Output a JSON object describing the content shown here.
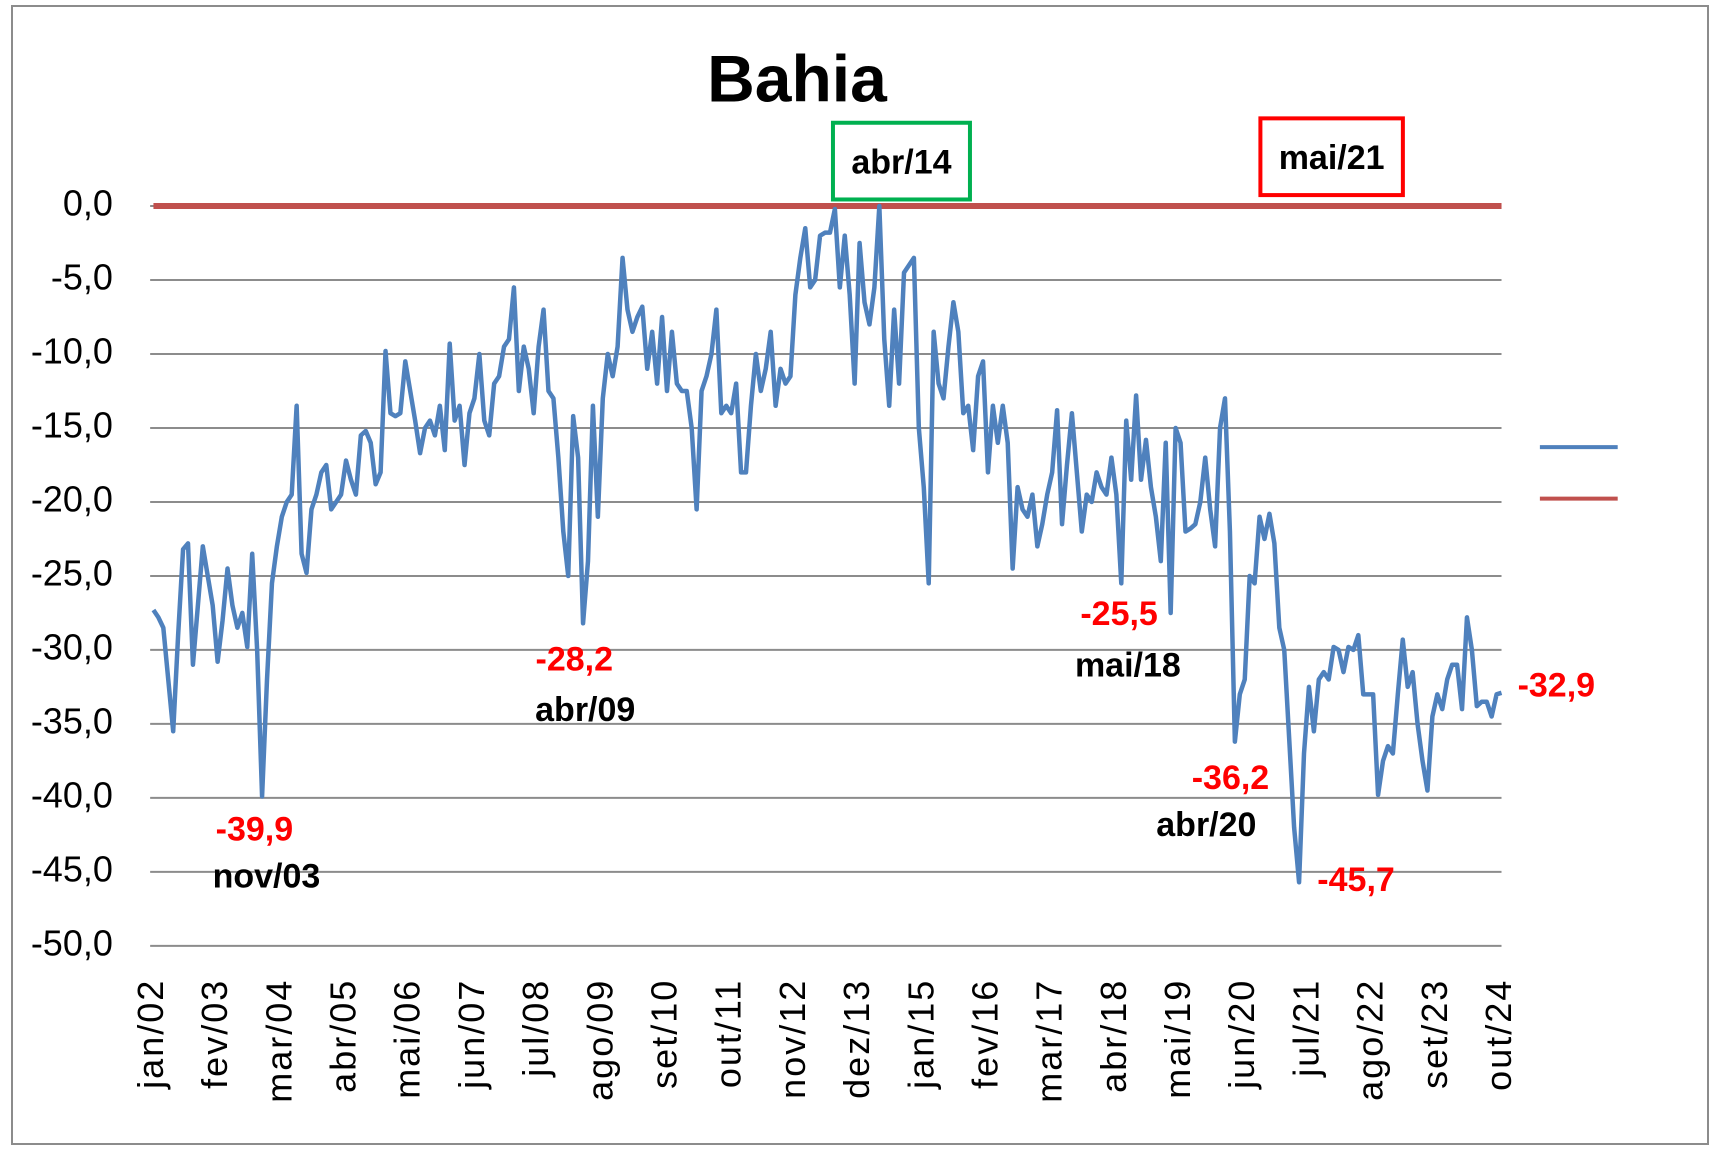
{
  "chart_data": {
    "type": "line",
    "title": "Bahia",
    "categories": [
      "jan/02",
      null,
      null,
      null,
      null,
      null,
      null,
      null,
      null,
      null,
      null,
      null,
      null,
      "fev/03",
      null,
      null,
      null,
      null,
      null,
      null,
      null,
      null,
      null,
      null,
      null,
      null,
      "mar/04",
      null,
      null,
      null,
      null,
      null,
      null,
      null,
      null,
      null,
      null,
      null,
      null,
      "abr/05",
      null,
      null,
      null,
      null,
      null,
      null,
      null,
      null,
      null,
      null,
      null,
      null,
      "mai/06",
      null,
      null,
      null,
      null,
      null,
      null,
      null,
      null,
      null,
      null,
      null,
      null,
      "jun/07",
      null,
      null,
      null,
      null,
      null,
      null,
      null,
      null,
      null,
      null,
      null,
      null,
      "jul/08",
      null,
      null,
      null,
      null,
      null,
      null,
      null,
      null,
      null,
      null,
      null,
      null,
      "ago/09",
      null,
      null,
      null,
      null,
      null,
      null,
      null,
      null,
      null,
      null,
      null,
      null,
      "set/10",
      null,
      null,
      null,
      null,
      null,
      null,
      null,
      null,
      null,
      null,
      null,
      null,
      "out/11",
      null,
      null,
      null,
      null,
      null,
      null,
      null,
      null,
      null,
      null,
      null,
      null,
      "nov/12",
      null,
      null,
      null,
      null,
      null,
      null,
      null,
      null,
      null,
      null,
      null,
      null,
      "dez/13",
      null,
      null,
      null,
      null,
      null,
      null,
      null,
      null,
      null,
      null,
      null,
      null,
      "jan/15",
      null,
      null,
      null,
      null,
      null,
      null,
      null,
      null,
      null,
      null,
      null,
      null,
      "fev/16",
      null,
      null,
      null,
      null,
      null,
      null,
      null,
      null,
      null,
      null,
      null,
      null,
      "mar/17",
      null,
      null,
      null,
      null,
      null,
      null,
      null,
      null,
      null,
      null,
      null,
      null,
      "abr/18",
      null,
      null,
      null,
      null,
      null,
      null,
      null,
      null,
      null,
      null,
      null,
      null,
      "mai/19",
      null,
      null,
      null,
      null,
      null,
      null,
      null,
      null,
      null,
      null,
      null,
      null,
      "jun/20",
      null,
      null,
      null,
      null,
      null,
      null,
      null,
      null,
      null,
      null,
      null,
      null,
      "jul/21",
      null,
      null,
      null,
      null,
      null,
      null,
      null,
      null,
      null,
      null,
      null,
      null,
      "ago/22",
      null,
      null,
      null,
      null,
      null,
      null,
      null,
      null,
      null,
      null,
      null,
      null,
      "set/23",
      null,
      null,
      null,
      null,
      null,
      null,
      null,
      null,
      null,
      null,
      null,
      null,
      "out/24"
    ],
    "series": [
      {
        "color": "#4f81bd",
        "values": [
          -27.3,
          -27.8,
          -28.5,
          -32,
          -35.5,
          -29,
          -23.2,
          -22.8,
          -31,
          -27,
          -23,
          -25,
          -27,
          -30.8,
          -28,
          -24.5,
          -27,
          -28.5,
          -27.5,
          -29.8,
          -23.5,
          -30,
          -39.9,
          -32,
          -25.5,
          -23,
          -21,
          -20,
          -19.5,
          -13.5,
          -23.5,
          -24.8,
          -20.5,
          -19.5,
          -18,
          -17.5,
          -20.5,
          -20,
          -19.5,
          -17.2,
          -18.5,
          -19.5,
          -15.5,
          -15.2,
          -16,
          -18.8,
          -18,
          -9.8,
          -14,
          -14.2,
          -14,
          -10.5,
          -12.5,
          -14.5,
          -16.7,
          -15,
          -14.5,
          -15.5,
          -13.5,
          -16.5,
          -9.3,
          -14.5,
          -13.5,
          -17.5,
          -14,
          -13,
          -10,
          -14.5,
          -15.5,
          -12,
          -11.5,
          -9.5,
          -9,
          -5.5,
          -12.5,
          -9.5,
          -11,
          -14,
          -9.5,
          -7,
          -12.5,
          -13,
          -17,
          -22,
          -25,
          -14.2,
          -17,
          -28.2,
          -24,
          -13.5,
          -21,
          -13,
          -10,
          -11.5,
          -9.5,
          -3.5,
          -7,
          -8.5,
          -7.5,
          -6.8,
          -11,
          -8.5,
          -12,
          -7.5,
          -12.5,
          -8.5,
          -12,
          -12.5,
          -12.5,
          -15,
          -20.5,
          -12.5,
          -11.5,
          -10,
          -7,
          -14,
          -13.5,
          -14,
          -12,
          -18,
          -18,
          -13.5,
          -10,
          -12.5,
          -11,
          -8.5,
          -13.5,
          -11,
          -12,
          -11.5,
          -6,
          -3.5,
          -1.5,
          -5.5,
          -5,
          -2,
          -1.8,
          -1.8,
          -0.2,
          -5.5,
          -2,
          -6,
          -12,
          -2.5,
          -6.5,
          -8,
          -5.5,
          0,
          -9,
          -13.5,
          -7,
          -12,
          -4.5,
          -4,
          -3.5,
          -15,
          -19,
          -25.5,
          -8.5,
          -12,
          -13,
          -9.5,
          -6.5,
          -8.5,
          -14,
          -13.5,
          -16.5,
          -11.5,
          -10.5,
          -18,
          -13.5,
          -16,
          -13.5,
          -16,
          -24.5,
          -19,
          -20.5,
          -21,
          -19.5,
          -23,
          -21.5,
          -19.5,
          -18,
          -13.8,
          -21.5,
          -17.5,
          -14,
          -18,
          -22,
          -19.5,
          -20,
          -18,
          -19,
          -19.5,
          -17,
          -19.5,
          -25.5,
          -14.5,
          -18.5,
          -12.8,
          -18.5,
          -15.8,
          -19,
          -21,
          -24,
          -16,
          -27.5,
          -15,
          -16,
          -22,
          -21.8,
          -21.5,
          -20,
          -17,
          -20.5,
          -23,
          -15,
          -13,
          -22,
          -36.2,
          -33,
          -32,
          -25,
          -25.5,
          -21,
          -22.5,
          -20.8,
          -22.8,
          -28.5,
          -30,
          -36,
          -42,
          -45.7,
          -37,
          -32.5,
          -35.5,
          -32,
          -31.5,
          -32,
          -29.8,
          -30,
          -31.5,
          -29.8,
          -30,
          -29,
          -33,
          -33,
          -33,
          -39.8,
          -37.5,
          -36.5,
          -37,
          -33,
          -29.3,
          -32.5,
          -31.5,
          -35,
          -37.5,
          -39.5,
          -34.5,
          -33,
          -34,
          -32,
          -31,
          -31,
          -34,
          -27.8,
          -30,
          -33.8,
          -33.5,
          -33.5,
          -34.5,
          -33,
          -32.9
        ],
        "value_labels": [
          null,
          null,
          null,
          null,
          null,
          null,
          null,
          null,
          null,
          null,
          null,
          null,
          null,
          null,
          null,
          null,
          null,
          null,
          null,
          null,
          null,
          null,
          "-39,9",
          null,
          null,
          null,
          null,
          null,
          null,
          null,
          null,
          null,
          null,
          null,
          null,
          null,
          null,
          null,
          null,
          null,
          null,
          null,
          null,
          null,
          null,
          null,
          null,
          null,
          null,
          null,
          null,
          null,
          null,
          null,
          null,
          null,
          null,
          null,
          null,
          null,
          null,
          null,
          null,
          null,
          null,
          null,
          null,
          null,
          null,
          null,
          null,
          null,
          null,
          null,
          null,
          null,
          null,
          null,
          null,
          null,
          null,
          null,
          null,
          null,
          null,
          null,
          null,
          "-28,2",
          null,
          null,
          null,
          null,
          null,
          null,
          null,
          null,
          null,
          null,
          null,
          null,
          null,
          null,
          null,
          null,
          null,
          null,
          null,
          null,
          null,
          null,
          null,
          null,
          null,
          null,
          null,
          null,
          null,
          null,
          null,
          null,
          null,
          null,
          null,
          null,
          null,
          null,
          null,
          null,
          null,
          null,
          null,
          null,
          null,
          null,
          null,
          null,
          null,
          null,
          null,
          null,
          null,
          null,
          null,
          null,
          null,
          null,
          null,
          null,
          null,
          null,
          null,
          null,
          null,
          null,
          null,
          null,
          null,
          null,
          null,
          null,
          null,
          null,
          null,
          null,
          null,
          null,
          null,
          null,
          null,
          null,
          null,
          null,
          null,
          null,
          null,
          null,
          null,
          null,
          null,
          null,
          null,
          null,
          null,
          null,
          null,
          null,
          null,
          null,
          null,
          null,
          null,
          null,
          null,
          null,
          null,
          null,
          "-25,5",
          null,
          null,
          null,
          null,
          null,
          null,
          null,
          null,
          null,
          null,
          null,
          null,
          null,
          null,
          null,
          null,
          null,
          null,
          null,
          null,
          null,
          null,
          "-36,2",
          null,
          null,
          null,
          null,
          null,
          null,
          null,
          null,
          null,
          null,
          null,
          null,
          "-45,7",
          null,
          null,
          null,
          null,
          null,
          null,
          null,
          null,
          null,
          null,
          null,
          null,
          null,
          null,
          null,
          null,
          null,
          null,
          null,
          null,
          null,
          null,
          null,
          null,
          null,
          null,
          null,
          null,
          null,
          null,
          null,
          null,
          null,
          null,
          null,
          null,
          null,
          null,
          null,
          null,
          "-32,9"
        ],
        "date_labels": [
          null,
          null,
          null,
          null,
          null,
          null,
          null,
          null,
          null,
          null,
          null,
          null,
          null,
          null,
          null,
          null,
          null,
          null,
          null,
          null,
          null,
          null,
          "nov/03",
          null,
          null,
          null,
          null,
          null,
          null,
          null,
          null,
          null,
          null,
          null,
          null,
          null,
          null,
          null,
          null,
          null,
          null,
          null,
          null,
          null,
          null,
          null,
          null,
          null,
          null,
          null,
          null,
          null,
          null,
          null,
          null,
          null,
          null,
          null,
          null,
          null,
          null,
          null,
          null,
          null,
          null,
          null,
          null,
          null,
          null,
          null,
          null,
          null,
          null,
          null,
          null,
          null,
          null,
          null,
          null,
          null,
          null,
          null,
          null,
          null,
          null,
          null,
          null,
          "abr/09",
          null,
          null,
          null,
          null,
          null,
          null,
          null,
          null,
          null,
          null,
          null,
          null,
          null,
          null,
          null,
          null,
          null,
          null,
          null,
          null,
          null,
          null,
          null,
          null,
          null,
          null,
          null,
          null,
          null,
          null,
          null,
          null,
          null,
          null,
          null,
          null,
          null,
          null,
          null,
          null,
          null,
          null,
          null,
          null,
          null,
          null,
          null,
          null,
          null,
          null,
          null,
          null,
          null,
          null,
          null,
          null,
          null,
          null,
          null,
          null,
          null,
          null,
          null,
          null,
          null,
          null,
          null,
          null,
          null,
          null,
          null,
          null,
          null,
          null,
          null,
          null,
          null,
          null,
          null,
          null,
          null,
          null,
          null,
          null,
          null,
          null,
          null,
          null,
          null,
          null,
          null,
          null,
          null,
          null,
          null,
          null,
          null,
          null,
          null,
          null,
          null,
          null,
          null,
          null,
          null,
          null,
          null,
          null,
          "mai/18",
          null,
          null,
          null,
          null,
          null,
          null,
          null,
          null,
          null,
          null,
          null,
          null,
          null,
          null,
          null,
          null,
          null,
          null,
          null,
          null,
          null,
          null,
          "abr/20",
          null,
          null,
          null,
          null,
          null,
          null,
          null,
          null,
          null,
          null,
          null,
          null,
          null,
          null,
          null,
          null,
          null,
          null,
          null,
          null,
          null,
          null,
          null,
          null,
          null,
          null,
          null,
          null,
          null,
          null,
          null,
          null,
          null,
          null,
          null,
          null,
          null,
          null,
          null,
          null,
          null,
          null,
          null,
          null,
          null,
          null,
          null,
          null,
          null,
          null,
          null,
          null,
          null,
          null
        ]
      }
    ],
    "reference_line": {
      "value": 0,
      "color": "#c0504d"
    },
    "boxes": [
      {
        "text": "abr/14",
        "color": "#00b050"
      },
      {
        "text": "mai/21",
        "color": "#ff0000"
      }
    ],
    "ylim": [
      -50,
      0
    ],
    "yticks": [
      {
        "value": -50,
        "label": "-50,0"
      },
      {
        "value": -45,
        "label": "-45,0"
      },
      {
        "value": -40,
        "label": "-40,0"
      },
      {
        "value": -35,
        "label": "-35,0"
      },
      {
        "value": -30,
        "label": "-30,0"
      },
      {
        "value": -25,
        "label": "-25,0"
      },
      {
        "value": -20,
        "label": "-20,0"
      },
      {
        "value": -15,
        "label": "-15,0"
      },
      {
        "value": -10,
        "label": "-10,0"
      },
      {
        "value": -5,
        "label": "-5,0"
      },
      {
        "value": 0,
        "label": "0,0"
      }
    ],
    "grid": true
  }
}
